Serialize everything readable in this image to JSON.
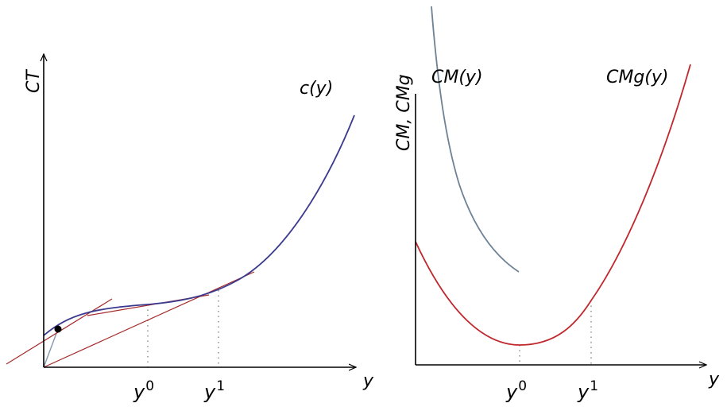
{
  "left_panel": {
    "y_axis_label": "CT",
    "x_axis_label": "y",
    "curve_label": "c(y)",
    "tick_y0": {
      "base": "y",
      "sup": "0"
    },
    "tick_y1": {
      "base": "y",
      "sup": "1"
    },
    "colors": {
      "cost_curve": "#3b3a8e",
      "tangents": "#a52a2a",
      "ray": "#8a9ab0",
      "axes": "#000000"
    }
  },
  "right_panel": {
    "y_axis_label": "CM, CMg",
    "x_axis_label": "y",
    "cm_label": "CM(y)",
    "cmg_label": "CMg(y)",
    "tick_y0": {
      "base": "y",
      "sup": "0"
    },
    "tick_y1": {
      "base": "y",
      "sup": "1"
    },
    "colors": {
      "cm_curve": "#6e8296",
      "cmg_curve": "#c0272d",
      "axes": "#000000"
    }
  }
}
